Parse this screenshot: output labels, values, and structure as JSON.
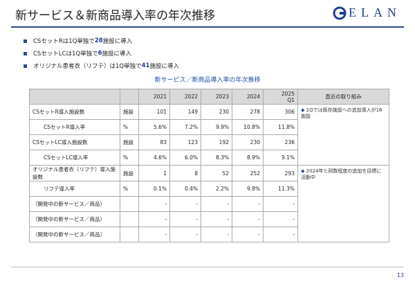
{
  "header": {
    "title": "新サービス＆新商品導入率の年次推移",
    "logo": "ELAN"
  },
  "bullets": [
    {
      "before": "CSセットRは1Q単独で",
      "number": "28",
      "after": "施設に導入"
    },
    {
      "before": "CSセットLCは1Q単独で",
      "number": "6",
      "after": "施設に導入"
    },
    {
      "before": "オリジナル患者衣（リフテ）は1Q単独で",
      "number": "41",
      "after": "施設に導入"
    }
  ],
  "table": {
    "title": "新サービス／新商品導入率の年次推移",
    "header": [
      "2021",
      "2022",
      "2023",
      "2024",
      "2025\nQ1",
      "直近の取り組み"
    ],
    "rows": [
      {
        "label": "CSセットR導入施設数",
        "unit": "施設",
        "values": [
          "101",
          "149",
          "230",
          "278",
          "306"
        ]
      },
      {
        "label": "CSセットR導入率",
        "unit": "%",
        "values": [
          "5.6%",
          "7.2%",
          "9.9%",
          "10.8%",
          "11.8%"
        ]
      },
      {
        "label": "CSセットLC導入施設数",
        "unit": "施設",
        "values": [
          "83",
          "123",
          "192",
          "230",
          "236"
        ]
      },
      {
        "label": "CSセットLC導入率",
        "unit": "%",
        "values": [
          "4.6%",
          "6.0%",
          "8.3%",
          "8.9%",
          "9.1%"
        ]
      },
      {
        "label": "オリジナル患者衣（リフテ）導入施設数",
        "unit": "施設",
        "values": [
          "1",
          "8",
          "52",
          "252",
          "293"
        ]
      },
      {
        "label": "リフテ導入率",
        "unit": "%",
        "values": [
          "0.1%",
          "0.4%",
          "2.2%",
          "9.8%",
          "11.3%"
        ]
      },
      {
        "label": "（開発中の新サービス／商品）",
        "values": [
          "-",
          "-",
          "-",
          "-",
          "-"
        ]
      },
      {
        "label": "（開発中の新サービス／商品）",
        "values": [
          "-",
          "-",
          "-",
          "-",
          "-"
        ]
      },
      {
        "label": "（開発中の新サービス／商品）",
        "values": [
          "-",
          "-",
          "-",
          "-",
          "-"
        ]
      }
    ],
    "notes": [
      "1Qでは既存施設への追加導入が16施設",
      "2024年と同数程度の追加を目標に活動中"
    ]
  },
  "page_number": "13"
}
